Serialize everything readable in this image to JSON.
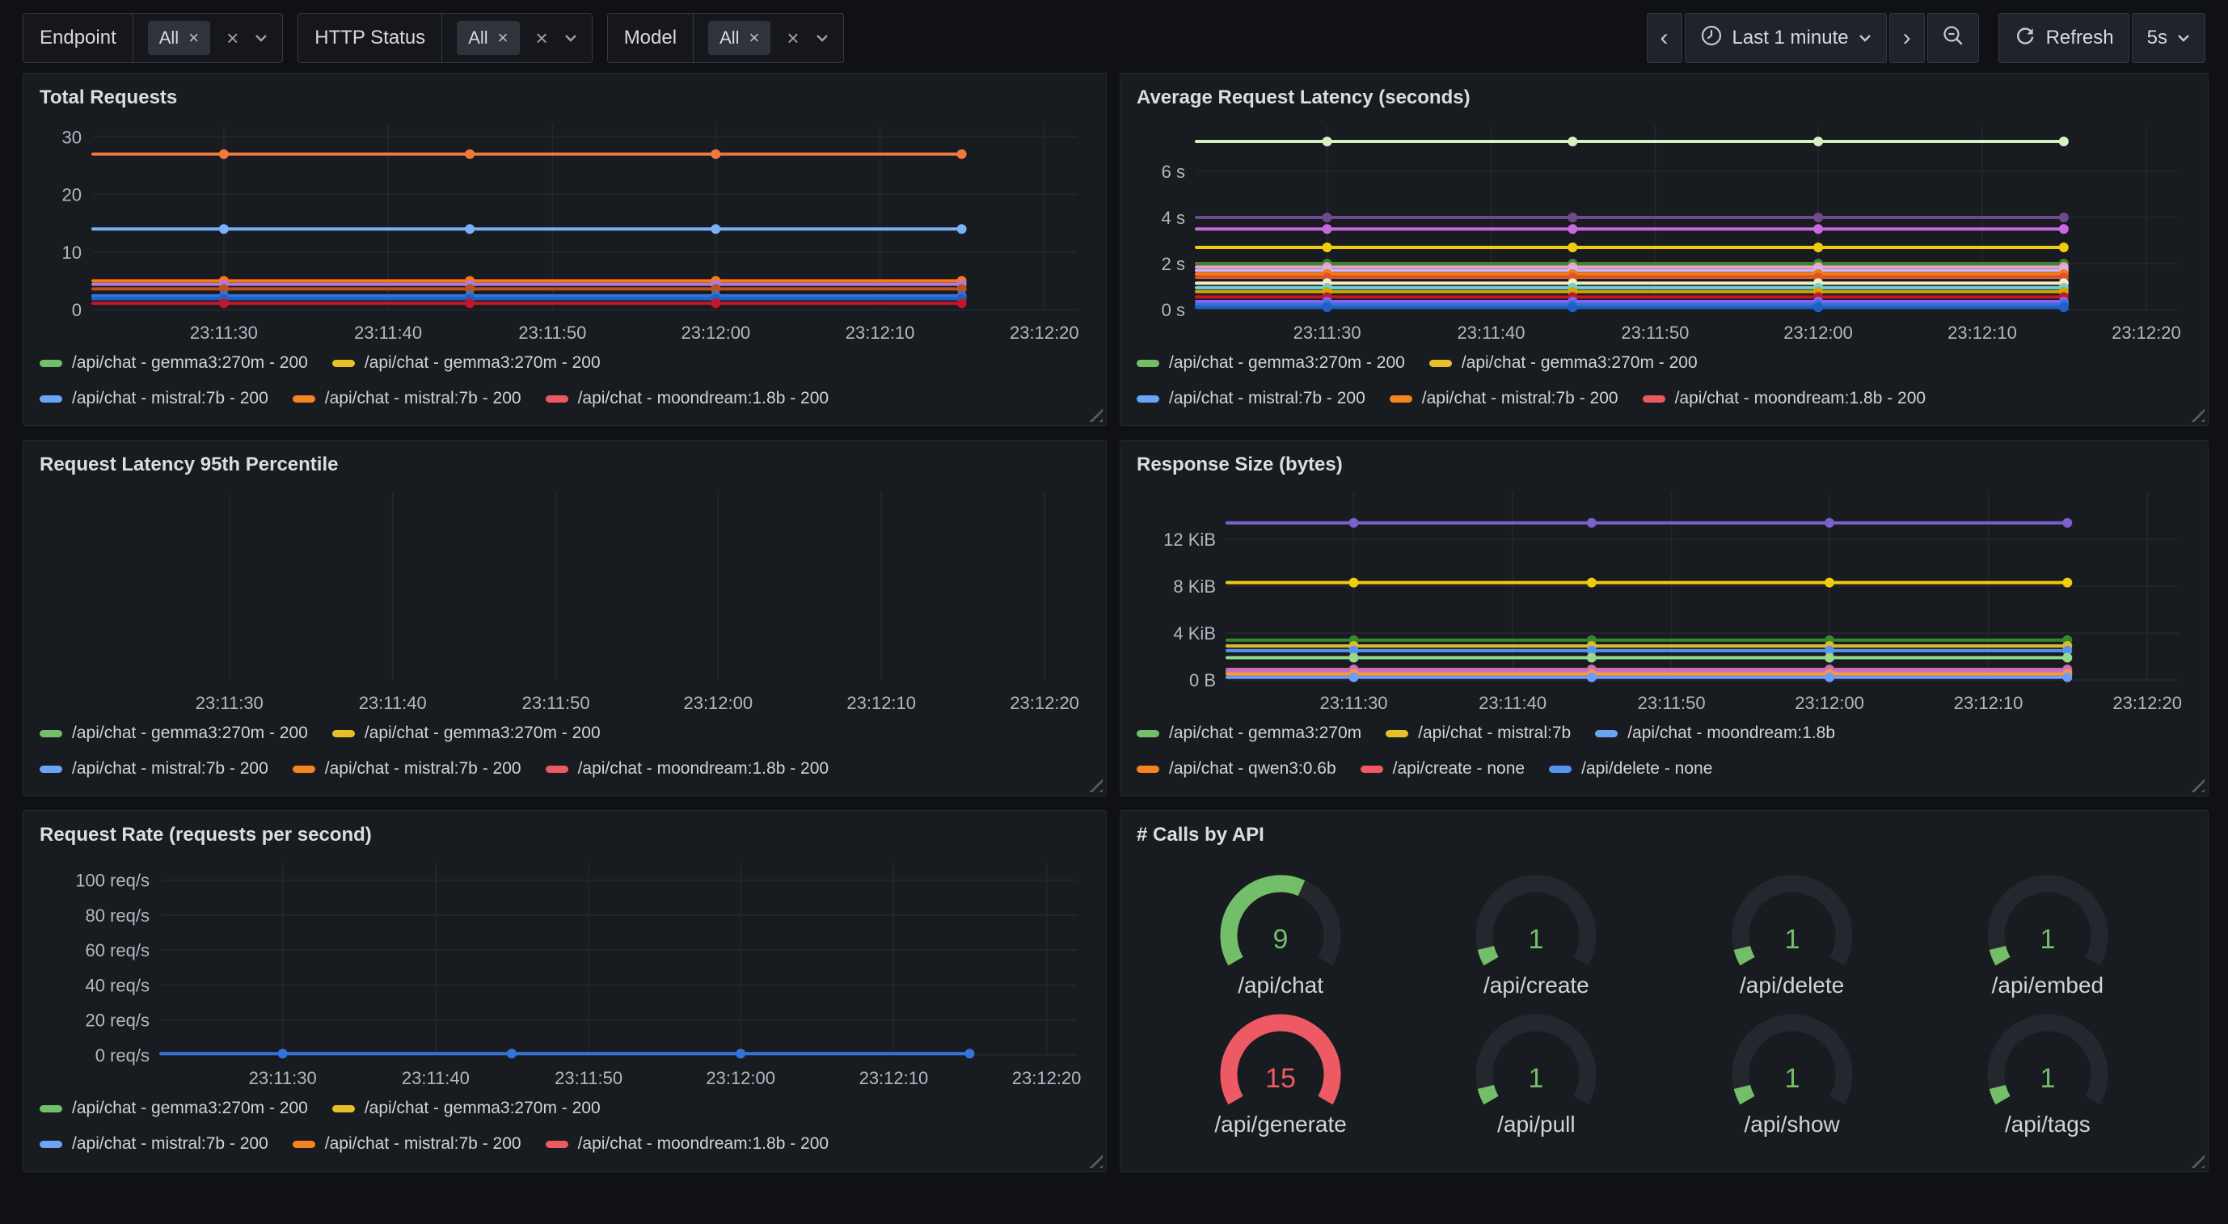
{
  "toolbar": {
    "filters": [
      {
        "label": "Endpoint",
        "value_chip": "All"
      },
      {
        "label": "HTTP Status",
        "value_chip": "All"
      },
      {
        "label": "Model",
        "value_chip": "All"
      }
    ],
    "time_range": "Last 1 minute",
    "refresh_label": "Refresh",
    "refresh_interval": "5s"
  },
  "x_axis": {
    "ticks": [
      {
        "f": 0.133,
        "label": "23:11:30"
      },
      {
        "f": 0.3,
        "label": "23:11:40"
      },
      {
        "f": 0.467,
        "label": "23:11:50"
      },
      {
        "f": 0.633,
        "label": "23:12:00"
      },
      {
        "f": 0.8,
        "label": "23:12:10"
      },
      {
        "f": 0.967,
        "label": "23:12:20"
      }
    ],
    "point_fracs": [
      0.133,
      0.383,
      0.633,
      0.883
    ],
    "sample_times": [
      "23:11:30",
      "23:11:45",
      "23:12:00",
      "23:12:15"
    ]
  },
  "legend_requests": {
    "rows": [
      [
        {
          "color": "#73bf69",
          "label": "/api/chat - gemma3:270m - 200"
        },
        {
          "color": "#e6c029",
          "label": "/api/chat - gemma3:270m - 200"
        }
      ],
      [
        {
          "color": "#6ca4f5",
          "label": "/api/chat - mistral:7b - 200"
        },
        {
          "color": "#f5831f",
          "label": "/api/chat - mistral:7b - 200"
        },
        {
          "color": "#ea5a60",
          "label": "/api/chat - moondream:1.8b - 200"
        }
      ]
    ]
  },
  "legend_response": {
    "rows": [
      [
        {
          "color": "#73bf69",
          "label": "/api/chat - gemma3:270m"
        },
        {
          "color": "#e6c029",
          "label": "/api/chat - mistral:7b"
        },
        {
          "color": "#6ca4f5",
          "label": "/api/chat - moondream:1.8b"
        }
      ],
      [
        {
          "color": "#f5831f",
          "label": "/api/chat - qwen3:0.6b"
        },
        {
          "color": "#ea5a60",
          "label": "/api/create - none"
        },
        {
          "color": "#5794f2",
          "label": "/api/delete - none"
        }
      ]
    ]
  },
  "panels": {
    "total_requests": {
      "title": "Total Requests",
      "chart_data": {
        "type": "line",
        "x": [
          "23:11:30",
          "23:11:45",
          "23:12:00",
          "23:12:15"
        ],
        "ylim": [
          0,
          32
        ],
        "y_ticks": [
          {
            "v": 0,
            "label": "0"
          },
          {
            "v": 10,
            "label": "10"
          },
          {
            "v": 20,
            "label": "20"
          },
          {
            "v": 30,
            "label": "30"
          }
        ],
        "gutter": 66,
        "series": [
          {
            "name": "/api/chat - mistral:7b - 200",
            "color": "#f2783c",
            "value": 27
          },
          {
            "name": "/api/chat - mistral:7b - 200",
            "color": "#7ab0f7",
            "value": 14
          },
          {
            "name": "",
            "color": "#ff780a",
            "value": 5
          },
          {
            "name": "",
            "color": "#b877d9",
            "value": 4.4
          },
          {
            "name": "",
            "color": "#b5541f",
            "value": 3.6
          },
          {
            "name": "",
            "color": "#3274d9",
            "value": 2.4
          },
          {
            "name": "",
            "color": "#1f60c4",
            "value": 1.9
          },
          {
            "name": "",
            "color": "#c4162a",
            "value": 1.1
          }
        ]
      }
    },
    "avg_latency": {
      "title": "Average Request Latency (seconds)",
      "chart_data": {
        "type": "line",
        "x": [
          "23:11:30",
          "23:11:45",
          "23:12:00",
          "23:12:15"
        ],
        "ylim": [
          0,
          8
        ],
        "y_ticks": [
          {
            "v": 0,
            "label": "0 s"
          },
          {
            "v": 2,
            "label": "2 s"
          },
          {
            "v": 4,
            "label": "4 s"
          },
          {
            "v": 6,
            "label": "6 s"
          }
        ],
        "gutter": 74,
        "series": [
          {
            "name": "",
            "color": "#d3f2c2",
            "value": 7.3
          },
          {
            "name": "",
            "color": "#6e4a8c",
            "value": 4.0
          },
          {
            "name": "",
            "color": "#c969e0",
            "value": 3.5
          },
          {
            "name": "",
            "color": "#f2cc0c",
            "value": 2.7
          },
          {
            "name": "",
            "color": "#37872d",
            "value": 2.0
          },
          {
            "name": "",
            "color": "#f2a0c0",
            "value": 1.85
          },
          {
            "name": "",
            "color": "#c7b8f5",
            "value": 1.7
          },
          {
            "name": "",
            "color": "#ff780a",
            "value": 1.55
          },
          {
            "name": "",
            "color": "#d9562c",
            "value": 1.4
          },
          {
            "name": "",
            "color": "#f2edbe",
            "value": 1.15
          },
          {
            "name": "",
            "color": "#6ed0e0",
            "value": 0.95
          },
          {
            "name": "",
            "color": "#cfa602",
            "value": 0.78
          },
          {
            "name": "",
            "color": "#c4162a",
            "value": 0.55
          },
          {
            "name": "",
            "color": "#8066f0",
            "value": 0.35
          },
          {
            "name": "",
            "color": "#3274d9",
            "value": 0.22
          },
          {
            "name": "",
            "color": "#1f60c4",
            "value": 0.1
          }
        ]
      }
    },
    "p95_latency": {
      "title": "Request Latency 95th Percentile",
      "chart_data": {
        "type": "line",
        "x": [
          "23:11:30",
          "23:11:45",
          "23:12:00",
          "23:12:15"
        ],
        "ylim": [
          0,
          1
        ],
        "y_ticks": [],
        "gutter": 74,
        "series": []
      }
    },
    "response_size": {
      "title": "Response Size (bytes)",
      "chart_data": {
        "type": "line",
        "x": [
          "23:11:30",
          "23:11:45",
          "23:12:00",
          "23:12:15"
        ],
        "unit": "KiB",
        "ylim": [
          0,
          16
        ],
        "y_ticks": [
          {
            "v": 0,
            "label": "0 B"
          },
          {
            "v": 4,
            "label": "4 KiB"
          },
          {
            "v": 8,
            "label": "8 KiB"
          },
          {
            "v": 12,
            "label": "12 KiB"
          }
        ],
        "gutter": 112,
        "series": [
          {
            "name": "",
            "color": "#7b61c9",
            "value": 13.4
          },
          {
            "name": "/api/chat - mistral:7b",
            "color": "#f2cc0c",
            "value": 8.3
          },
          {
            "name": "",
            "color": "#37872d",
            "value": 3.4
          },
          {
            "name": "",
            "color": "#d9bb2a",
            "value": 2.9
          },
          {
            "name": "",
            "color": "#5794f2",
            "value": 2.5
          },
          {
            "name": "",
            "color": "#96d98d",
            "value": 1.9
          },
          {
            "name": "",
            "color": "#e0659c",
            "value": 0.9
          },
          {
            "name": "",
            "color": "#b877d9",
            "value": 0.7
          },
          {
            "name": "",
            "color": "#ff9830",
            "value": 0.5
          },
          {
            "name": "",
            "color": "#6c9ef8",
            "value": 0.22
          }
        ]
      }
    },
    "request_rate": {
      "title": "Request Rate (requests per second)",
      "chart_data": {
        "type": "line",
        "x": [
          "23:11:30",
          "23:11:45",
          "23:12:00",
          "23:12:15"
        ],
        "ylim": [
          0,
          110
        ],
        "y_ticks": [
          {
            "v": 0,
            "label": "0 req/s"
          },
          {
            "v": 20,
            "label": "20 req/s"
          },
          {
            "v": 40,
            "label": "40 req/s"
          },
          {
            "v": 60,
            "label": "60 req/s"
          },
          {
            "v": 80,
            "label": "80 req/s"
          },
          {
            "v": 100,
            "label": "100 req/s"
          }
        ],
        "gutter": 150,
        "series": [
          {
            "name": "/api/chat - mistral:7b - 200",
            "color": "#3274d9",
            "value": 0.8
          }
        ]
      }
    },
    "calls_by_api": {
      "title": "# Calls by API",
      "max": 15,
      "gauges": [
        {
          "label": "/api/chat",
          "value": 9,
          "color": "#73bf69"
        },
        {
          "label": "/api/create",
          "value": 1,
          "color": "#73bf69"
        },
        {
          "label": "/api/delete",
          "value": 1,
          "color": "#73bf69"
        },
        {
          "label": "/api/embed",
          "value": 1,
          "color": "#73bf69"
        },
        {
          "label": "/api/generate",
          "value": 15,
          "color": "#ee5a63"
        },
        {
          "label": "/api/pull",
          "value": 1,
          "color": "#73bf69"
        },
        {
          "label": "/api/show",
          "value": 1,
          "color": "#73bf69"
        },
        {
          "label": "/api/tags",
          "value": 1,
          "color": "#73bf69"
        }
      ]
    }
  },
  "colors": {
    "page_bg": "#101116",
    "panel_bg": "#181b20",
    "grid_line": "#25272e",
    "axis_text": "#b5b7bf",
    "gauge_track": "#24272d",
    "green": "#73bf69",
    "red": "#ee5a63"
  }
}
